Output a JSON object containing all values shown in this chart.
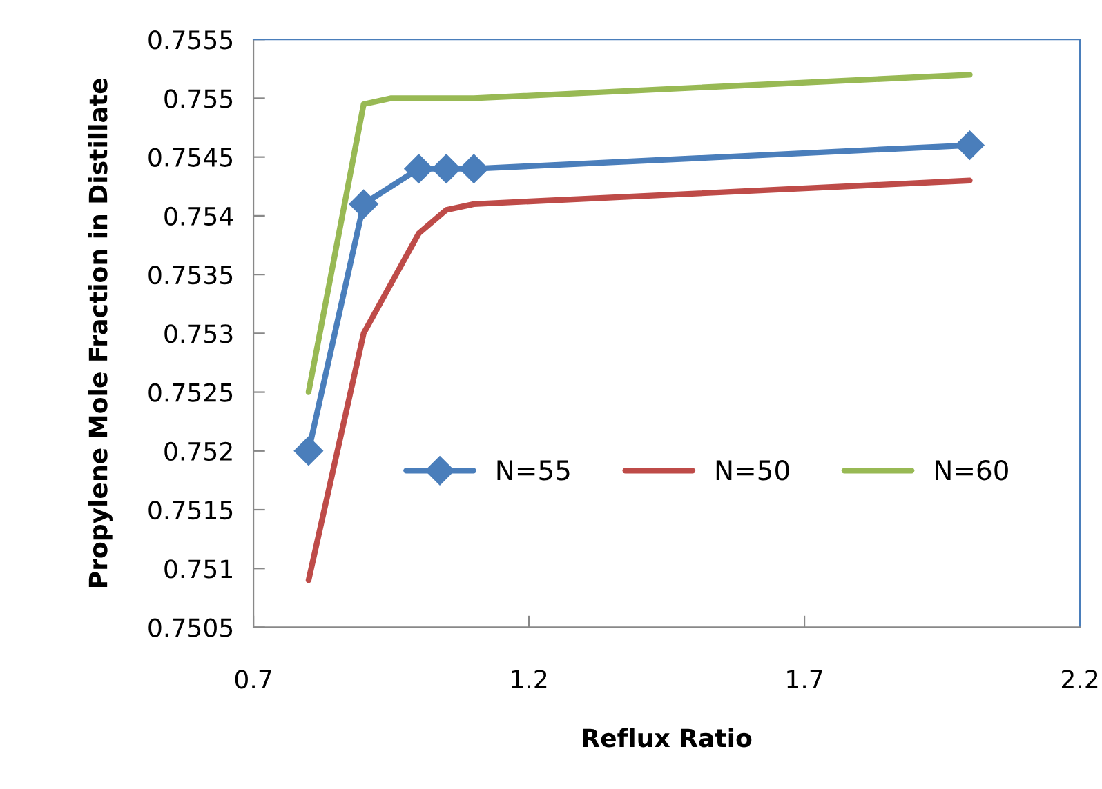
{
  "chart_data": {
    "type": "line",
    "xlabel": "Reflux Ratio",
    "ylabel": "Propylene Mole Fraction in Distillate",
    "xlim": [
      0.7,
      2.2
    ],
    "xticks": [
      0.7,
      1.2,
      1.7,
      2.2
    ],
    "ylim": [
      0.7505,
      0.7555
    ],
    "yticks": [
      0.7505,
      0.751,
      0.7515,
      0.752,
      0.7525,
      0.753,
      0.7535,
      0.754,
      0.7545,
      0.755,
      0.7555
    ],
    "grid": false,
    "legend": "bottom",
    "line_style": "solid",
    "series": [
      {
        "name": "N=55",
        "color": "#4a7ebb",
        "marker": "diamond",
        "x": [
          0.8,
          0.9,
          1.0,
          1.05,
          1.1,
          2.0
        ],
        "values": [
          0.752,
          0.7541,
          0.7544,
          0.7544,
          0.7544,
          0.7546
        ]
      },
      {
        "name": "N=50",
        "color": "#be4b48",
        "marker": "none",
        "x": [
          0.8,
          0.9,
          1.0,
          1.05,
          1.1,
          2.0
        ],
        "values": [
          0.7509,
          0.753,
          0.75385,
          0.75405,
          0.7541,
          0.7543
        ]
      },
      {
        "name": "N=60",
        "color": "#98b954",
        "marker": "none",
        "x": [
          0.8,
          0.9,
          0.95,
          1.0,
          1.05,
          1.1,
          2.0
        ],
        "values": [
          0.7525,
          0.75495,
          0.755,
          0.755,
          0.755,
          0.755,
          0.7552
        ]
      }
    ]
  }
}
